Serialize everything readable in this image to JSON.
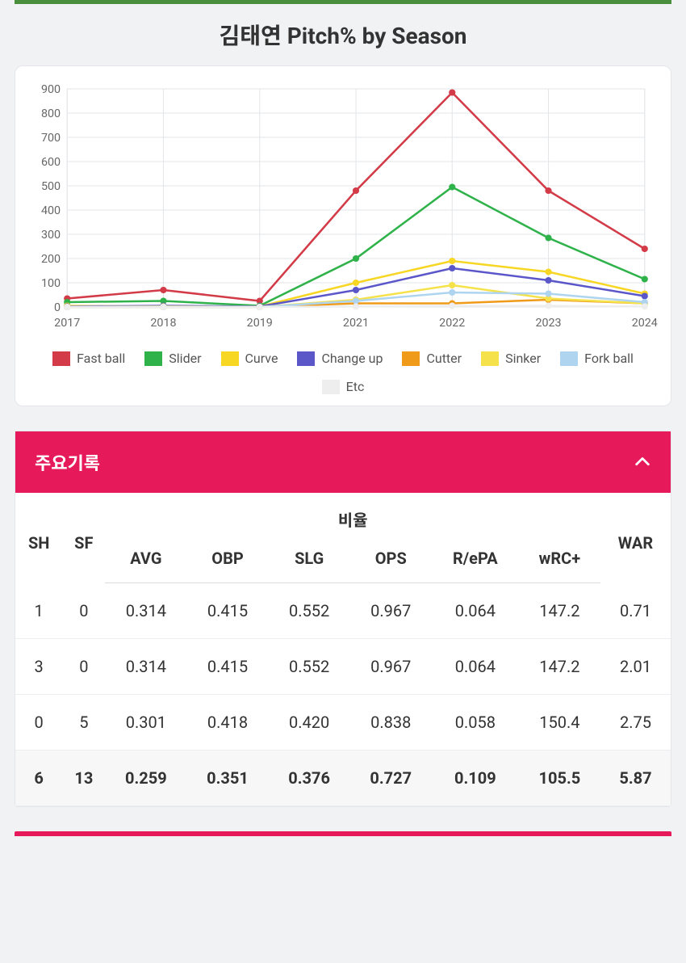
{
  "title": "김태연 Pitch% by Season",
  "chart": {
    "type": "line",
    "background_color": "#ffffff",
    "grid_color": "#e3e5e8",
    "axis_text_color": "#666666",
    "border_color": "#e4e6e9",
    "label_fontsize": 14,
    "line_width": 2.5,
    "marker_radius": 4,
    "ylim": [
      0,
      900
    ],
    "ytick_step": 100,
    "categories": [
      "2017",
      "2018",
      "2019",
      "2021",
      "2022",
      "2023",
      "2024"
    ],
    "series": [
      {
        "name": "Fast ball",
        "color": "#d23b47",
        "values": [
          35,
          70,
          25,
          480,
          885,
          480,
          240
        ]
      },
      {
        "name": "Slider",
        "color": "#2fb24a",
        "values": [
          20,
          25,
          5,
          200,
          495,
          285,
          115
        ]
      },
      {
        "name": "Curve",
        "color": "#f7d624",
        "values": [
          5,
          2,
          2,
          100,
          190,
          145,
          55
        ]
      },
      {
        "name": "Change up",
        "color": "#5b57c9",
        "values": [
          2,
          5,
          2,
          70,
          160,
          110,
          45
        ]
      },
      {
        "name": "Cutter",
        "color": "#f09a1a",
        "values": [
          0,
          0,
          0,
          15,
          15,
          30,
          15
        ]
      },
      {
        "name": "Sinker",
        "color": "#f5e24b",
        "values": [
          0,
          2,
          0,
          30,
          90,
          35,
          15
        ]
      },
      {
        "name": "Fork ball",
        "color": "#aed4ef",
        "values": [
          0,
          0,
          0,
          25,
          60,
          55,
          20
        ]
      },
      {
        "name": "Etc",
        "color": "#eeeeee",
        "values": [
          0,
          0,
          0,
          2,
          5,
          5,
          2
        ]
      }
    ]
  },
  "panel": {
    "title": "주요기록",
    "header_bg": "#e6195a",
    "header_text_color": "#ffffff"
  },
  "table": {
    "group_header": "비율",
    "columns_left": [
      "SH",
      "SF"
    ],
    "columns_ratio": [
      "AVG",
      "OBP",
      "SLG",
      "OPS",
      "R/ePA",
      "wRC+"
    ],
    "columns_right": [
      "WAR"
    ],
    "rows": [
      [
        "1",
        "0",
        "0.314",
        "0.415",
        "0.552",
        "0.967",
        "0.064",
        "147.2",
        "0.71"
      ],
      [
        "3",
        "0",
        "0.314",
        "0.415",
        "0.552",
        "0.967",
        "0.064",
        "147.2",
        "2.01"
      ],
      [
        "0",
        "5",
        "0.301",
        "0.418",
        "0.420",
        "0.838",
        "0.058",
        "150.4",
        "2.75"
      ],
      [
        "6",
        "13",
        "0.259",
        "0.351",
        "0.376",
        "0.727",
        "0.109",
        "105.5",
        "5.87"
      ]
    ],
    "header_fontsize": 20,
    "cell_fontsize": 20,
    "border_color": "#d9dcde"
  }
}
